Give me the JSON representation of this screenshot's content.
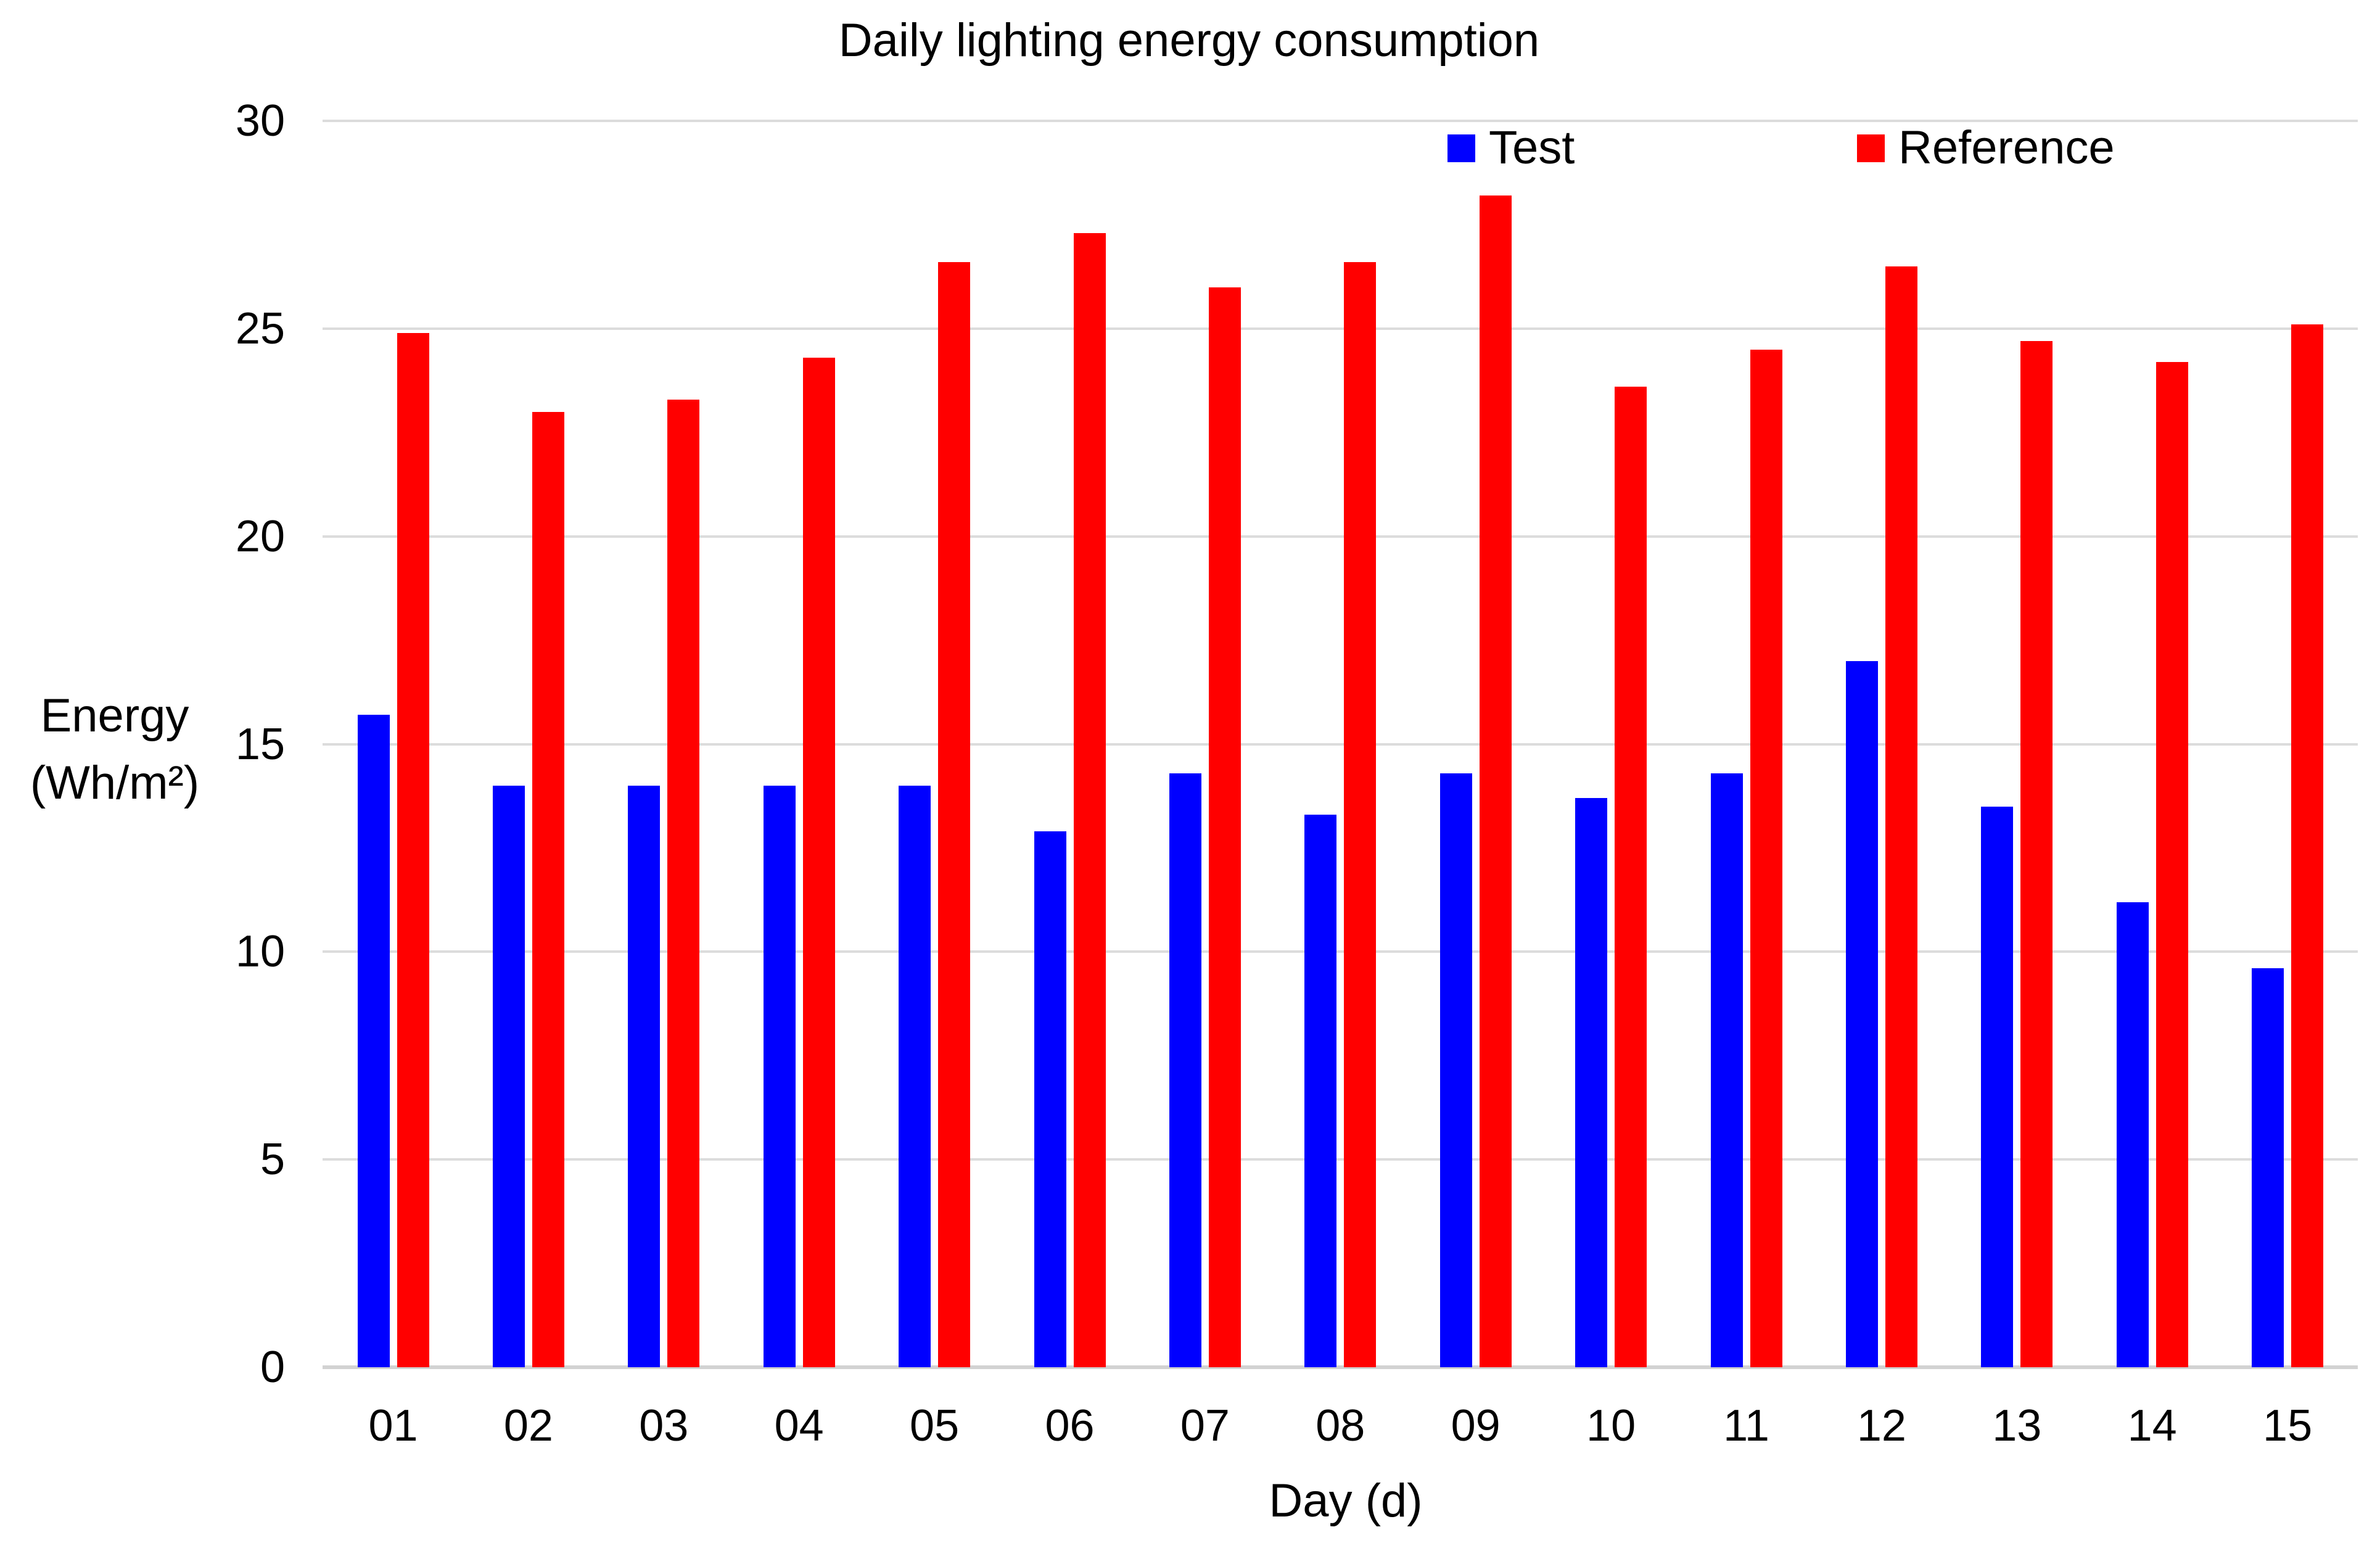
{
  "chart_data": {
    "type": "bar",
    "title": "Daily lighting energy consumption",
    "xlabel": "Day (d)",
    "ylabel": "Energy (Wh/m²)",
    "ylabel_lines": [
      "Energy",
      "(Wh/m²)"
    ],
    "categories": [
      "01",
      "02",
      "03",
      "04",
      "05",
      "06",
      "07",
      "08",
      "09",
      "10",
      "11",
      "12",
      "13",
      "14",
      "15"
    ],
    "series": [
      {
        "name": "Test",
        "color": "#0000ff",
        "values": [
          15.7,
          14.0,
          14.0,
          14.0,
          14.0,
          12.9,
          14.3,
          13.3,
          14.3,
          13.7,
          14.3,
          17.0,
          13.5,
          11.2,
          9.6
        ]
      },
      {
        "name": "Reference",
        "color": "#ff0000",
        "values": [
          24.9,
          23.0,
          23.3,
          24.3,
          26.6,
          27.3,
          26.0,
          26.6,
          28.2,
          23.6,
          24.5,
          26.5,
          24.7,
          24.2,
          25.1
        ]
      }
    ],
    "ylim": [
      0,
      30
    ],
    "yticks": [
      0,
      5,
      10,
      15,
      20,
      25,
      30
    ],
    "grid": true,
    "legend_position": "top"
  },
  "colors": {
    "test_bar": "#0000ff",
    "reference_bar": "#ff0000",
    "gridline": "#dcdcdc",
    "axis_line": "#d2d2d2",
    "text": "#000000",
    "background": "#ffffff"
  }
}
